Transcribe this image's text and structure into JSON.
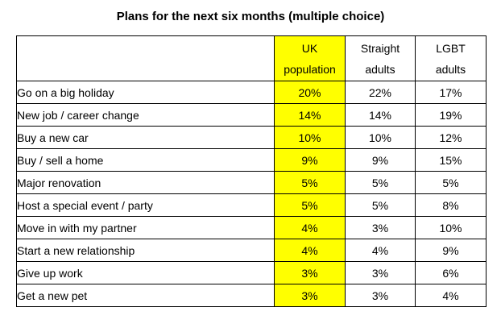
{
  "title": "Plans for the next six months (multiple choice)",
  "table": {
    "highlight_color": "#FFFF00",
    "header": {
      "corner": "",
      "uk": {
        "line1": "UK",
        "line2": "population"
      },
      "straight": {
        "line1": "Straight",
        "line2": "adults"
      },
      "lgbt": {
        "line1": "LGBT",
        "line2": "adults"
      }
    },
    "rows": [
      {
        "label": "Go on a big holiday",
        "uk": "20%",
        "straight": "22%",
        "lgbt": "17%"
      },
      {
        "label": "New job / career change",
        "uk": "14%",
        "straight": "14%",
        "lgbt": "19%"
      },
      {
        "label": "Buy a new car",
        "uk": "10%",
        "straight": "10%",
        "lgbt": "12%"
      },
      {
        "label": "Buy / sell a home",
        "uk": "9%",
        "straight": "9%",
        "lgbt": "15%"
      },
      {
        "label": "Major renovation",
        "uk": "5%",
        "straight": "5%",
        "lgbt": "5%"
      },
      {
        "label": "Host a special event / party",
        "uk": "5%",
        "straight": "5%",
        "lgbt": "8%"
      },
      {
        "label": "Move in with my partner",
        "uk": "4%",
        "straight": "3%",
        "lgbt": "10%"
      },
      {
        "label": "Start a new relationship",
        "uk": "4%",
        "straight": "4%",
        "lgbt": "9%"
      },
      {
        "label": "Give up work",
        "uk": "3%",
        "straight": "3%",
        "lgbt": "6%"
      },
      {
        "label": "Get a new pet",
        "uk": "3%",
        "straight": "3%",
        "lgbt": "4%"
      }
    ]
  },
  "chart_data": {
    "type": "table",
    "title": "Plans for the next six months (multiple choice)",
    "categories": [
      "Go on a big holiday",
      "New job / career change",
      "Buy a new car",
      "Buy / sell a home",
      "Major renovation",
      "Host a special event / party",
      "Move in with my partner",
      "Start a new relationship",
      "Give up work",
      "Get a new pet"
    ],
    "series": [
      {
        "name": "UK population",
        "values": [
          20,
          14,
          10,
          9,
          5,
          5,
          4,
          4,
          3,
          3
        ]
      },
      {
        "name": "Straight adults",
        "values": [
          22,
          14,
          10,
          9,
          5,
          5,
          3,
          4,
          3,
          3
        ]
      },
      {
        "name": "LGBT adults",
        "values": [
          17,
          19,
          12,
          15,
          5,
          8,
          10,
          9,
          6,
          4
        ]
      }
    ],
    "value_format": "percent",
    "highlighted_series": "UK population",
    "highlight_color": "#FFFF00"
  }
}
